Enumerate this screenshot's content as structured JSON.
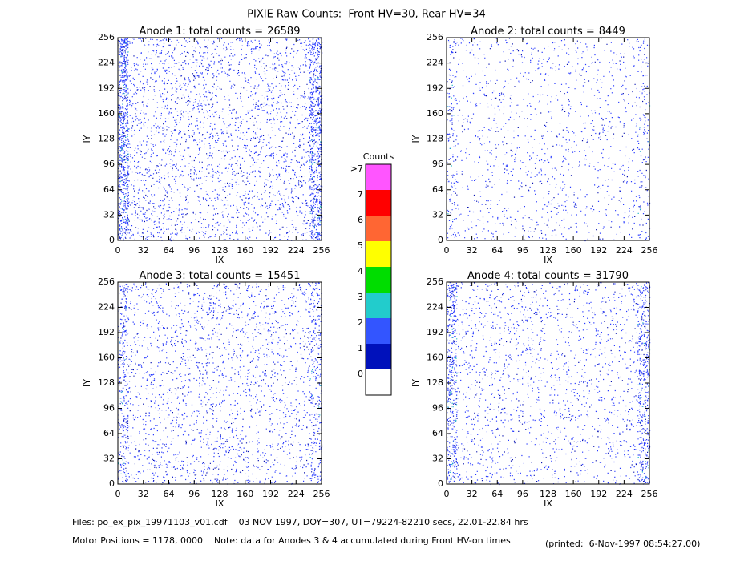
{
  "title": "PIXIE Raw Counts:  Front HV=30, Rear HV=34",
  "chart_data": [
    {
      "type": "heatmap",
      "title": "Anode 1: total counts =",
      "total_counts": 26589,
      "xlabel": "IX",
      "ylabel": "IY",
      "xlim": [
        0,
        256
      ],
      "ylim": [
        0,
        256
      ],
      "xticks": [
        0,
        32,
        64,
        96,
        128,
        160,
        192,
        224,
        256
      ],
      "yticks": [
        0,
        32,
        64,
        96,
        128,
        160,
        192,
        224,
        256
      ]
    },
    {
      "type": "heatmap",
      "title": "Anode 2: total counts =",
      "total_counts": 8449,
      "xlabel": "IX",
      "ylabel": "IY",
      "xlim": [
        0,
        256
      ],
      "ylim": [
        0,
        256
      ],
      "xticks": [
        0,
        32,
        64,
        96,
        128,
        160,
        192,
        224,
        256
      ],
      "yticks": [
        0,
        32,
        64,
        96,
        128,
        160,
        192,
        224,
        256
      ]
    },
    {
      "type": "heatmap",
      "title": "Anode 3: total counts =",
      "total_counts": 15451,
      "xlabel": "IX",
      "ylabel": "IY",
      "xlim": [
        0,
        256
      ],
      "ylim": [
        0,
        256
      ],
      "xticks": [
        0,
        32,
        64,
        96,
        128,
        160,
        192,
        224,
        256
      ],
      "yticks": [
        0,
        32,
        64,
        96,
        128,
        160,
        192,
        224,
        256
      ]
    },
    {
      "type": "heatmap",
      "title": "Anode 4: total counts =",
      "total_counts": 31790,
      "xlabel": "IX",
      "ylabel": "IY",
      "xlim": [
        0,
        256
      ],
      "ylim": [
        0,
        256
      ],
      "xticks": [
        0,
        32,
        64,
        96,
        128,
        160,
        192,
        224,
        256
      ],
      "yticks": [
        0,
        32,
        64,
        96,
        128,
        160,
        192,
        224,
        256
      ]
    }
  ],
  "colorbar": {
    "title": "Counts",
    "labels": [
      ">7",
      7,
      6,
      5,
      4,
      3,
      2,
      1,
      0
    ],
    "colors": [
      "#ff55ff",
      "#ff0000",
      "#ff6633",
      "#ffff00",
      "#00dd00",
      "#22cccc",
      "#3355ff",
      "#0011bb",
      "#ffffff"
    ]
  },
  "footer": {
    "files": "Files: po_ex_pix_19971103_v01.cdf    03 NOV 1997, DOY=307, UT=79224-82210 secs, 22.01-22.84 hrs",
    "motor": "Motor Positions = 1178, 0000    Note: data for Anodes 3 & 4 accumulated during Front HV-on times",
    "printed": "(printed:  6-Nov-1997 08:54:27.00)"
  }
}
